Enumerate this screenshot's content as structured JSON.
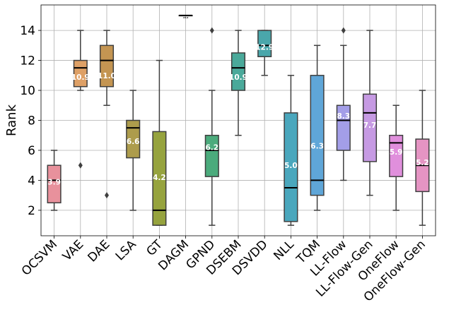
{
  "chart_data": {
    "type": "box",
    "title": "",
    "xlabel": "",
    "ylabel": "Rank",
    "ylim": [
      0.3,
      15.7
    ],
    "yticks": [
      2,
      4,
      6,
      8,
      10,
      12,
      14
    ],
    "grid": true,
    "categories": [
      "OCSVM",
      "VAE",
      "DAE",
      "LSA",
      "GT",
      "DAGM",
      "GPND",
      "DSEBM",
      "DSVDD",
      "NLL",
      "TQM",
      "LL-Flow",
      "LL-Flow-Gen",
      "OneFlow",
      "OneFlow-Gen"
    ],
    "series": [
      {
        "category": "OCSVM",
        "color": "#e8919c",
        "whisker_low": 2.0,
        "q1": 2.5,
        "median": 4.0,
        "q3": 5.0,
        "whisker_high": 6.0,
        "outliers": [],
        "mean_label": "3.9"
      },
      {
        "category": "VAE",
        "color": "#dea066",
        "whisker_low": 10.0,
        "q1": 10.25,
        "median": 11.5,
        "q3": 12.0,
        "whisker_high": 14.0,
        "outliers": [
          5.0
        ],
        "mean_label": "10.9"
      },
      {
        "category": "DAE",
        "color": "#c49552",
        "whisker_low": 9.0,
        "q1": 10.25,
        "median": 12.0,
        "q3": 13.0,
        "whisker_high": 14.0,
        "outliers": [
          3.0
        ],
        "mean_label": "11.0"
      },
      {
        "category": "LSA",
        "color": "#ad9c4c",
        "whisker_low": 2.0,
        "q1": 5.5,
        "median": 7.5,
        "q3": 8.0,
        "whisker_high": 10.0,
        "outliers": [],
        "mean_label": "6.6"
      },
      {
        "category": "GT",
        "color": "#96a33e",
        "whisker_low": 1.0,
        "q1": 1.0,
        "median": 2.0,
        "q3": 7.25,
        "whisker_high": 12.0,
        "outliers": [],
        "mean_label": "4.2"
      },
      {
        "category": "DAGM",
        "color": "#5fa84e",
        "whisker_low": 15.0,
        "q1": 15.0,
        "median": 15.0,
        "q3": 15.0,
        "whisker_high": 15.0,
        "outliers": [],
        "mean_label": "15.0"
      },
      {
        "category": "GPND",
        "color": "#4bab7c",
        "whisker_low": 1.0,
        "q1": 4.25,
        "median": 6.0,
        "q3": 7.0,
        "whisker_high": 10.0,
        "outliers": [
          14.0
        ],
        "mean_label": "6.2"
      },
      {
        "category": "DSEBM",
        "color": "#4aa99a",
        "whisker_low": 7.0,
        "q1": 10.0,
        "median": 11.5,
        "q3": 12.5,
        "whisker_high": 14.0,
        "outliers": [],
        "mean_label": "10.9"
      },
      {
        "category": "DSVDD",
        "color": "#4aa7ab",
        "whisker_low": 11.0,
        "q1": 12.25,
        "median": 13.0,
        "q3": 14.0,
        "whisker_high": 14.0,
        "outliers": [],
        "mean_label": "12.9"
      },
      {
        "category": "NLL",
        "color": "#4aa7bd",
        "whisker_low": 1.0,
        "q1": 1.25,
        "median": 3.5,
        "q3": 8.5,
        "whisker_high": 11.0,
        "outliers": [],
        "mean_label": "5.0"
      },
      {
        "category": "TQM",
        "color": "#5fa6d8",
        "whisker_low": 2.0,
        "q1": 3.0,
        "median": 4.0,
        "q3": 11.0,
        "whisker_high": 13.0,
        "outliers": [],
        "mean_label": "6.3"
      },
      {
        "category": "LL-Flow",
        "color": "#a39ee8",
        "whisker_low": 4.0,
        "q1": 6.0,
        "median": 8.0,
        "q3": 9.0,
        "whisker_high": 13.0,
        "outliers": [
          14.0
        ],
        "mean_label": "8.3"
      },
      {
        "category": "LL-Flow-Gen",
        "color": "#c69ae3",
        "whisker_low": 3.0,
        "q1": 5.25,
        "median": 8.5,
        "q3": 9.75,
        "whisker_high": 14.0,
        "outliers": [],
        "mean_label": "7.7"
      },
      {
        "category": "OneFlow",
        "color": "#e08fdc",
        "whisker_low": 2.0,
        "q1": 4.25,
        "median": 6.5,
        "q3": 7.0,
        "whisker_high": 9.0,
        "outliers": [],
        "mean_label": "5.9"
      },
      {
        "category": "OneFlow-Gen",
        "color": "#e594c3",
        "whisker_low": 1.0,
        "q1": 3.25,
        "median": 5.0,
        "q3": 6.75,
        "whisker_high": 10.0,
        "outliers": [],
        "mean_label": "5.2"
      }
    ]
  }
}
